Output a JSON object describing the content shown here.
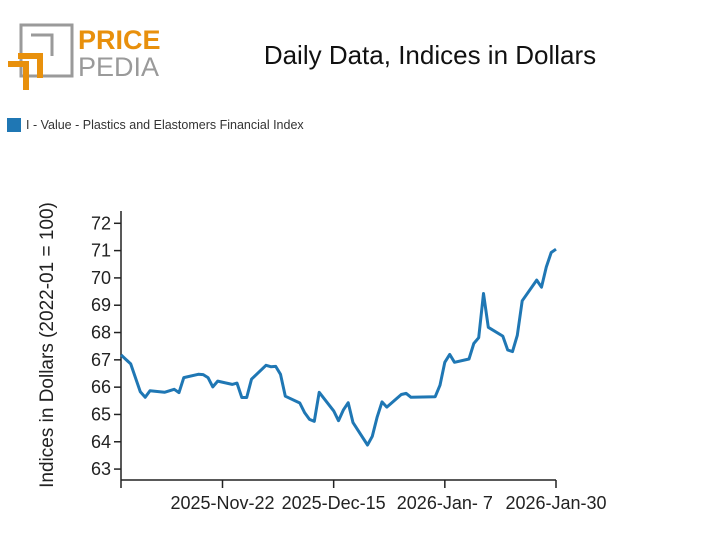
{
  "logo": {
    "text_top": "PRICE",
    "text_bottom": "PEDIA",
    "colors": {
      "orange": "#E8900C",
      "gray": "#9a9a9a"
    }
  },
  "chart_data": {
    "type": "line",
    "title": "Daily Data, Indices in Dollars",
    "ylabel": "Indices in Dollars (2022-01 = 100)",
    "xlabel": "",
    "legend_position": "top-left",
    "grid": false,
    "xlim": [
      "2025-11-01",
      "2026-01-30"
    ],
    "ylim": [
      62.6,
      72.45
    ],
    "yticks": [
      63,
      64,
      65,
      66,
      67,
      68,
      69,
      70,
      71,
      72
    ],
    "xticks": [
      {
        "date": "2025-11-01",
        "label": ""
      },
      {
        "date": "2025-11-22",
        "label": "2025-Nov-22"
      },
      {
        "date": "2025-12-15",
        "label": "2025-Dec-15"
      },
      {
        "date": "2026-01-07",
        "label": "2026-Jan- 7"
      },
      {
        "date": "2026-01-30",
        "label": "2026-Jan-30"
      }
    ],
    "series": [
      {
        "name": "I - Value - Plastics and Elastomers Financial Index",
        "color": "#1f77b4",
        "x": [
          "2025-11-01",
          "2025-11-03",
          "2025-11-05",
          "2025-11-06",
          "2025-11-07",
          "2025-11-10",
          "2025-11-12",
          "2025-11-13",
          "2025-11-14",
          "2025-11-17",
          "2025-11-18",
          "2025-11-19",
          "2025-11-20",
          "2025-11-21",
          "2025-11-24",
          "2025-11-25",
          "2025-11-26",
          "2025-11-27",
          "2025-11-28",
          "2025-12-01",
          "2025-12-02",
          "2025-12-03",
          "2025-12-04",
          "2025-12-05",
          "2025-12-08",
          "2025-12-09",
          "2025-12-10",
          "2025-12-11",
          "2025-12-12",
          "2025-12-15",
          "2025-12-16",
          "2025-12-17",
          "2025-12-18",
          "2025-12-19",
          "2025-12-22",
          "2025-12-23",
          "2025-12-24",
          "2025-12-25",
          "2025-12-26",
          "2025-12-29",
          "2025-12-30",
          "2025-12-31",
          "2026-01-05",
          "2026-01-06",
          "2026-01-07",
          "2026-01-08",
          "2026-01-09",
          "2026-01-12",
          "2026-01-13",
          "2026-01-14",
          "2026-01-15",
          "2026-01-16",
          "2026-01-19",
          "2026-01-20",
          "2026-01-21",
          "2026-01-22",
          "2026-01-23",
          "2026-01-26",
          "2026-01-27",
          "2026-01-28",
          "2026-01-29",
          "2026-01-30"
        ],
        "values": [
          67.18,
          66.85,
          65.83,
          65.63,
          65.87,
          65.81,
          65.92,
          65.8,
          66.35,
          66.47,
          66.46,
          66.35,
          66.01,
          66.22,
          66.1,
          66.15,
          65.62,
          65.62,
          66.29,
          66.8,
          66.75,
          66.76,
          66.47,
          65.67,
          65.42,
          65.06,
          64.82,
          64.75,
          65.81,
          65.13,
          64.77,
          65.16,
          65.43,
          64.7,
          63.88,
          64.2,
          64.91,
          65.46,
          65.27,
          65.73,
          65.77,
          65.63,
          65.65,
          66.07,
          66.91,
          67.2,
          66.91,
          67.03,
          67.6,
          67.81,
          69.43,
          68.19,
          67.87,
          67.36,
          67.3,
          67.9,
          69.16,
          69.92,
          69.66,
          70.4,
          70.93,
          71.05
        ]
      }
    ]
  }
}
